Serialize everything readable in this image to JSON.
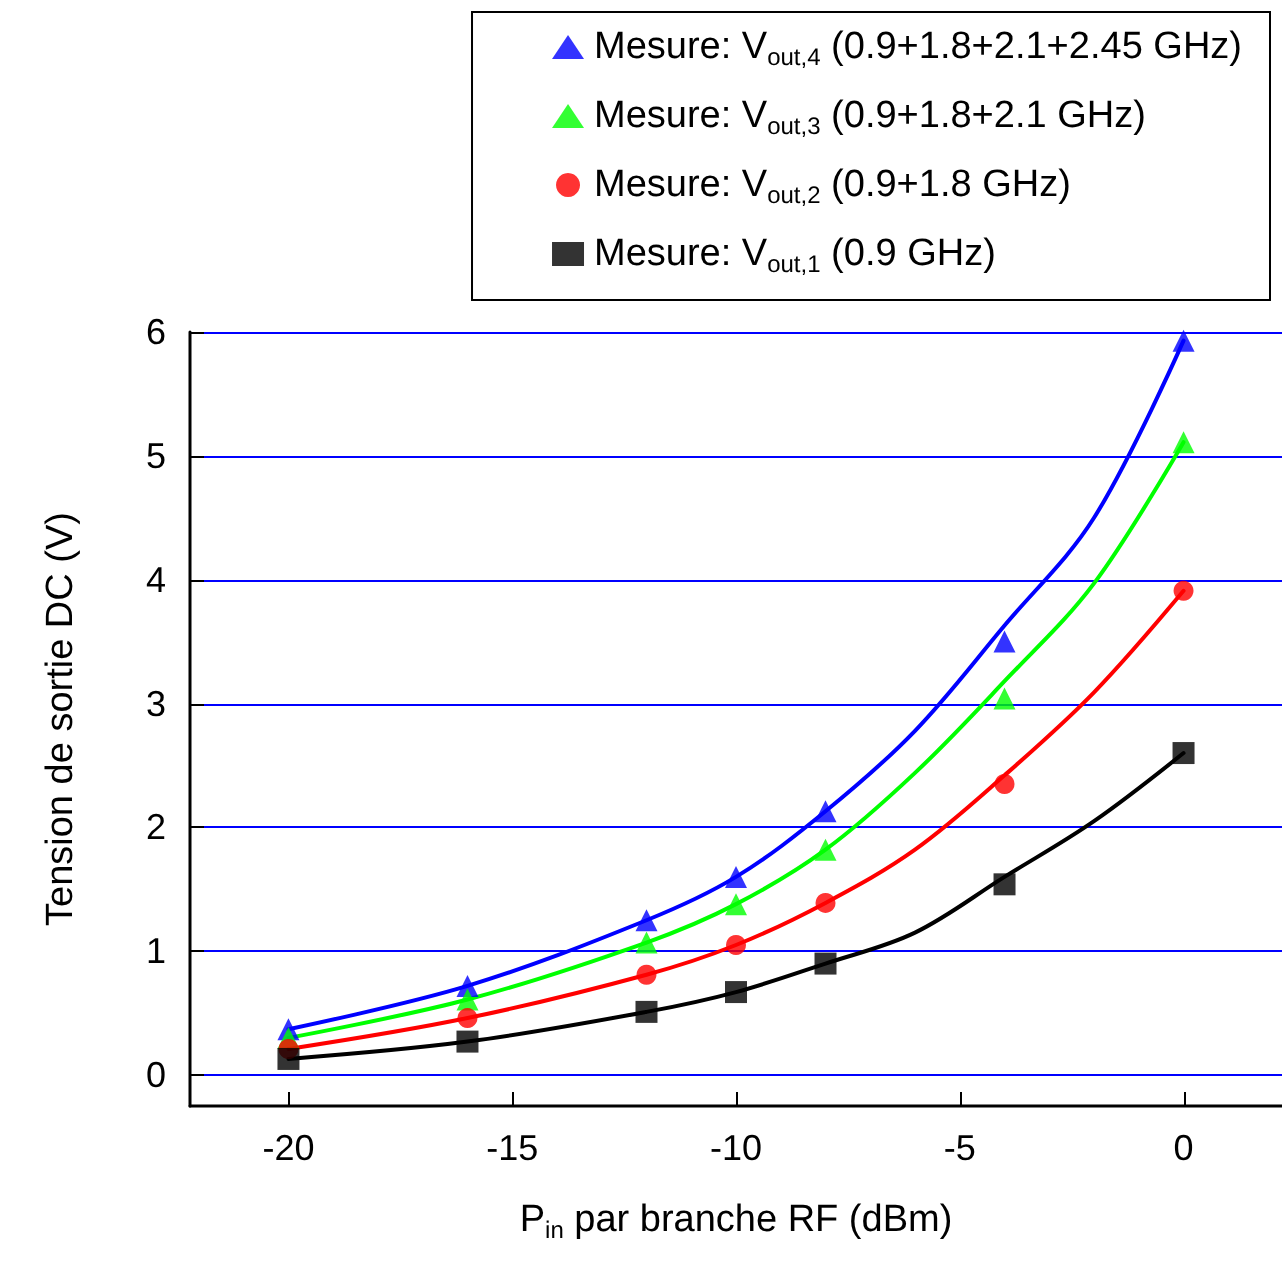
{
  "chart_data": {
    "type": "scatter",
    "xlabel": "P$_{in}$ par branche RF (dBm)",
    "ylabel": "Tension de sortie DC (V)",
    "x": [
      -20,
      -16,
      -12,
      -10,
      -8,
      -4,
      0
    ],
    "series": [
      {
        "name": "Mesure: V$_{out,4}$ (0.9+1.8+2.1+2.45 GHz)",
        "color": "#0000ff",
        "marker": "triangle",
        "values": [
          0.37,
          0.72,
          1.25,
          1.6,
          2.13,
          3.5,
          5.93
        ]
      },
      {
        "name": "Mesure: V$_{out,3}$ (0.9+1.8+2.1 GHz)",
        "color": "#00ff00",
        "marker": "triangle",
        "values": [
          0.3,
          0.61,
          1.07,
          1.38,
          1.82,
          3.04,
          5.11
        ]
      },
      {
        "name": "Mesure: V$_{out,2}$ (0.9+1.8 GHz)",
        "color": "#ff0000",
        "marker": "circle",
        "values": [
          0.21,
          0.46,
          0.81,
          1.05,
          1.39,
          2.35,
          3.91
        ]
      },
      {
        "name": "Mesure: V$_{out,1}$ (0.9 GHz)",
        "color": "#000000",
        "marker": "square",
        "values": [
          0.13,
          0.27,
          0.51,
          0.67,
          0.9,
          1.54,
          2.6
        ]
      },
      {
        "type": "line",
        "color": "#0000ff",
        "marker": "none",
        "x": [
          -20,
          -16,
          -12,
          -10,
          -8,
          -6,
          -4,
          -2,
          0
        ],
        "values": [
          0.37,
          0.72,
          1.25,
          1.6,
          2.13,
          2.78,
          3.63,
          4.5,
          5.93
        ]
      },
      {
        "type": "line",
        "color": "#00ff00",
        "marker": "none",
        "x": [
          -20,
          -16,
          -12,
          -10,
          -8,
          -6,
          -4,
          -2,
          0
        ],
        "values": [
          0.3,
          0.61,
          1.07,
          1.38,
          1.82,
          2.44,
          3.18,
          3.97,
          5.11
        ]
      },
      {
        "type": "line",
        "color": "#ff0000",
        "marker": "none",
        "x": [
          -20,
          -16,
          -12,
          -10,
          -8,
          -6,
          -4,
          -2,
          0
        ],
        "values": [
          0.21,
          0.46,
          0.81,
          1.05,
          1.39,
          1.82,
          2.42,
          3.09,
          3.91
        ]
      },
      {
        "type": "line",
        "color": "#000000",
        "marker": "none",
        "x": [
          -20,
          -16,
          -12,
          -10,
          -8,
          -6,
          -4,
          -2,
          0
        ],
        "values": [
          0.13,
          0.27,
          0.51,
          0.67,
          0.9,
          1.15,
          1.6,
          2.05,
          2.6
        ]
      }
    ],
    "xlim": [
      -22.2,
      2.2
    ],
    "xticks": [
      -20,
      -15,
      -10,
      -5,
      0
    ],
    "ylim": [
      -0.25,
      6
    ],
    "yticks": [
      0,
      1,
      2,
      3,
      4,
      5,
      6
    ],
    "grid": "y",
    "legend": "top right"
  }
}
